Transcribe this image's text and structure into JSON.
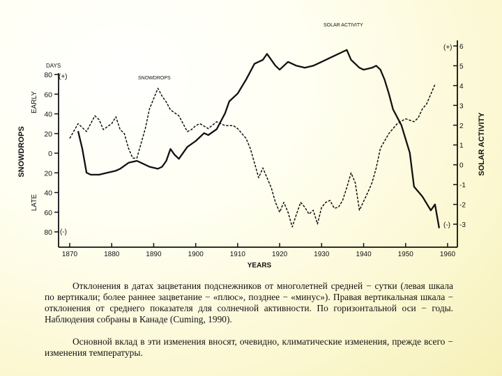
{
  "chart_data": {
    "type": "line",
    "title": "",
    "xlabel": "YEARS",
    "xlim": [
      1870,
      1962
    ],
    "x_ticks": [
      "1870",
      "1880",
      "1890",
      "1900",
      "1910",
      "1920",
      "1930",
      "1940",
      "1950",
      "1960"
    ],
    "left_axis": {
      "unit_label": "DAYS",
      "plus_label": "(+)",
      "minus_label": "(-)",
      "side_label": "SNOWDROPS",
      "early_label": "EARLY",
      "late_label": "LATE",
      "ylim": [
        -80,
        80
      ],
      "ticks": [
        "80",
        "60",
        "40",
        "20",
        "0",
        "20",
        "40",
        "60",
        "80"
      ]
    },
    "right_axis": {
      "label": "SOLAR ACTIVITY",
      "plus_label": "(+)",
      "minus_label": "(-)",
      "ylim": [
        -3,
        6
      ],
      "ticks": [
        "6",
        "5",
        "4",
        "3",
        "2",
        "1",
        "0",
        "-1",
        "-2",
        "-3"
      ]
    },
    "series": [
      {
        "name": "SNOWDROPS",
        "style": "dashed",
        "axis": "left",
        "x": [
          1870,
          1872,
          1874,
          1876,
          1877,
          1878,
          1880,
          1881,
          1882,
          1883,
          1884,
          1885,
          1886,
          1888,
          1889,
          1891,
          1892,
          1893,
          1894,
          1896,
          1897,
          1898,
          1899,
          1900,
          1901,
          1903,
          1905,
          1906,
          1907,
          1909,
          1910,
          1911,
          1912,
          1913,
          1914,
          1915,
          1916,
          1917,
          1918,
          1919,
          1920,
          1921,
          1922,
          1923,
          1924,
          1925,
          1926,
          1927,
          1928,
          1929,
          1930,
          1931,
          1932,
          1933,
          1934,
          1935,
          1936,
          1937,
          1938,
          1939,
          1941,
          1942,
          1943,
          1944,
          1946,
          1948,
          1950,
          1952,
          1953,
          1954,
          1955,
          1956,
          1957
        ],
        "values": [
          15,
          30,
          22,
          38,
          34,
          24,
          30,
          37,
          24,
          20,
          5,
          -5,
          -5,
          25,
          45,
          66,
          58,
          52,
          44,
          38,
          30,
          22,
          24,
          28,
          30,
          25,
          32,
          30,
          28,
          28,
          25,
          20,
          15,
          5,
          -10,
          -25,
          -15,
          -25,
          -35,
          -50,
          -60,
          -50,
          -60,
          -75,
          -62,
          -50,
          -55,
          -62,
          -58,
          -72,
          -55,
          -50,
          -48,
          -56,
          -55,
          -48,
          -35,
          -20,
          -30,
          -58,
          -40,
          -30,
          -15,
          5,
          20,
          30,
          35,
          32,
          36,
          45,
          50,
          60,
          70
        ]
      },
      {
        "name": "SOLAR ACTIVITY",
        "style": "solid",
        "axis": "right",
        "x": [
          1872,
          1873,
          1874,
          1875,
          1877,
          1879,
          1881,
          1882,
          1884,
          1886,
          1887,
          1889,
          1891,
          1892,
          1893,
          1894,
          1895,
          1896,
          1898,
          1900,
          1902,
          1903,
          1905,
          1906,
          1907,
          1908,
          1910,
          1912,
          1914,
          1916,
          1917,
          1919,
          1920,
          1922,
          1924,
          1926,
          1928,
          1930,
          1932,
          1933,
          1935,
          1936,
          1937,
          1939,
          1940,
          1942,
          1943,
          1944,
          1945,
          1946,
          1947,
          1949,
          1951,
          1952,
          1954,
          1956,
          1957,
          1958
        ],
        "values": [
          1.7,
          0.8,
          -0.4,
          -0.5,
          -0.5,
          -0.4,
          -0.3,
          -0.2,
          0.1,
          0.2,
          0.1,
          -0.1,
          -0.2,
          -0.1,
          0.2,
          0.8,
          0.5,
          0.3,
          0.9,
          1.2,
          1.6,
          1.5,
          1.8,
          2.2,
          2.6,
          3.2,
          3.6,
          4.3,
          5.1,
          5.3,
          5.6,
          5.0,
          4.8,
          5.2,
          5.0,
          4.9,
          5.0,
          5.2,
          5.4,
          5.5,
          5.7,
          5.8,
          5.3,
          4.9,
          4.8,
          4.9,
          5.0,
          4.8,
          4.3,
          3.6,
          2.8,
          2.0,
          0.6,
          -1.1,
          -1.6,
          -2.3,
          -2.0,
          -3.2
        ]
      }
    ],
    "annotations": [
      "SNOWDROPS",
      "SOLAR ACTIVITY"
    ],
    "grid": false,
    "legend": "none"
  },
  "caption": {
    "p1": "Отклонения в датах зацветания подснежников от многолетней средней − сутки (левая шкала по вертикали; более раннее зацветание − «плюс», позднее − «минус»). Правая вертикальная шкала − отклонения от среднего показателя для солнечной активности. По горизонтальной оси − годы. Наблюдения собраны в Канаде (Cuming, 1990).",
    "p2": "Основной вклад в эти изменения вносят, очевидно, климатические изменения, прежде всего − изменения температуры."
  }
}
